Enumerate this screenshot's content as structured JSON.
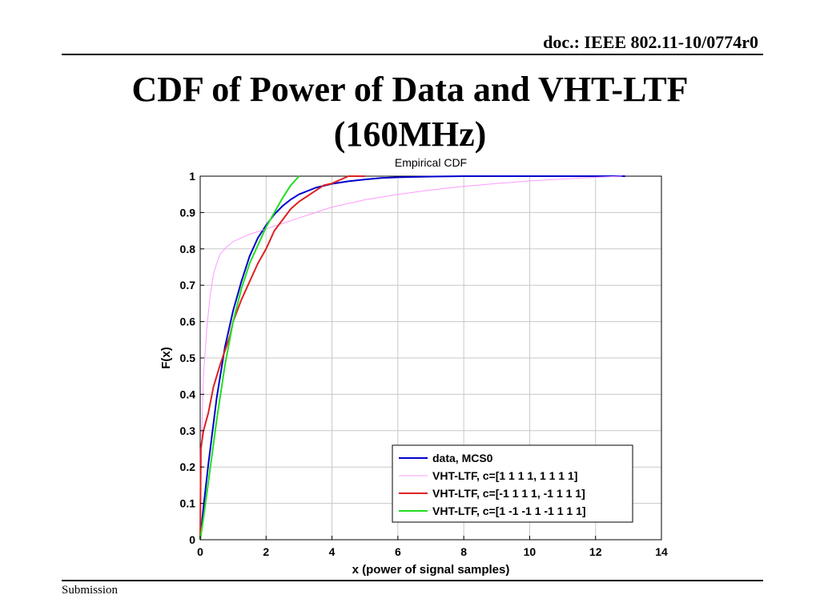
{
  "header": {
    "doc_id": "doc.: IEEE 802.11-10/0774r0"
  },
  "slide": {
    "title_line1": "CDF of Power of Data and VHT-LTF",
    "title_line2": "(160MHz)"
  },
  "footer": {
    "text": "Submission"
  },
  "colors": {
    "data": "#0000cc",
    "vht_ltf_1": "#ff99ff",
    "vht_ltf_2": "#dd2222",
    "vht_ltf_3": "#22dd22"
  },
  "chart_data": {
    "type": "line",
    "title": "Empirical CDF",
    "xlabel": "x (power of signal samples)",
    "ylabel": "F(x)",
    "xlim": [
      0,
      14
    ],
    "ylim": [
      0,
      1
    ],
    "xticks": [
      0,
      2,
      4,
      6,
      8,
      10,
      12,
      14
    ],
    "yticks": [
      0,
      0.1,
      0.2,
      0.3,
      0.4,
      0.5,
      0.6,
      0.7,
      0.8,
      0.9,
      1
    ],
    "grid": true,
    "legend_position": "bottom-right",
    "series": [
      {
        "name": "data, MCS0",
        "color": "#0000cc",
        "x": [
          0,
          0.1,
          0.25,
          0.5,
          0.75,
          1.0,
          1.25,
          1.5,
          1.75,
          2.0,
          2.25,
          2.5,
          2.75,
          3.0,
          3.5,
          4.0,
          4.5,
          5.0,
          5.5,
          6.0,
          7.0,
          8.0,
          9.0,
          10.0,
          11.0,
          12.0,
          12.9
        ],
        "y": [
          0,
          0.09,
          0.21,
          0.39,
          0.53,
          0.63,
          0.71,
          0.78,
          0.83,
          0.865,
          0.895,
          0.918,
          0.936,
          0.95,
          0.968,
          0.979,
          0.986,
          0.991,
          0.995,
          0.997,
          0.999,
          1,
          1,
          1,
          1,
          1,
          1
        ]
      },
      {
        "name": "VHT-LTF, c=[1 1 1 1, 1 1 1 1]",
        "color": "#ff99ff",
        "x": [
          0,
          0.05,
          0.1,
          0.2,
          0.3,
          0.4,
          0.5,
          0.6,
          0.8,
          1.0,
          1.5,
          2.0,
          2.5,
          3.0,
          3.5,
          4.0,
          5.0,
          6.0,
          7.0,
          8.0,
          9.0,
          10.0,
          11.0,
          12.0,
          12.8
        ],
        "y": [
          0,
          0.3,
          0.45,
          0.58,
          0.67,
          0.73,
          0.76,
          0.785,
          0.805,
          0.82,
          0.84,
          0.855,
          0.87,
          0.885,
          0.9,
          0.915,
          0.935,
          0.95,
          0.962,
          0.972,
          0.98,
          0.987,
          0.992,
          0.997,
          1
        ]
      },
      {
        "name": "VHT-LTF, c=[-1 1 1 1, -1 1 1 1]",
        "color": "#dd2222",
        "x": [
          0,
          0.02,
          0.1,
          0.25,
          0.4,
          0.5,
          0.6,
          0.75,
          0.9,
          1.0,
          1.25,
          1.5,
          1.75,
          2.0,
          2.25,
          2.5,
          2.75,
          3.0,
          3.25,
          3.5,
          3.75,
          4.0,
          4.25,
          4.5,
          5.0
        ],
        "y": [
          0,
          0.25,
          0.3,
          0.35,
          0.42,
          0.45,
          0.48,
          0.52,
          0.56,
          0.6,
          0.66,
          0.71,
          0.76,
          0.8,
          0.85,
          0.88,
          0.91,
          0.93,
          0.945,
          0.96,
          0.975,
          0.98,
          0.99,
          1,
          1
        ]
      },
      {
        "name": "VHT-LTF, c=[1 -1 -1 1 -1 1 1 1]",
        "color": "#22dd22",
        "x": [
          0,
          0.1,
          0.25,
          0.5,
          0.75,
          1.0,
          1.25,
          1.5,
          1.75,
          2.0,
          2.25,
          2.5,
          2.75,
          2.9,
          3.0
        ],
        "y": [
          0,
          0.06,
          0.16,
          0.33,
          0.48,
          0.6,
          0.69,
          0.76,
          0.81,
          0.86,
          0.9,
          0.94,
          0.975,
          0.99,
          1
        ]
      }
    ]
  }
}
